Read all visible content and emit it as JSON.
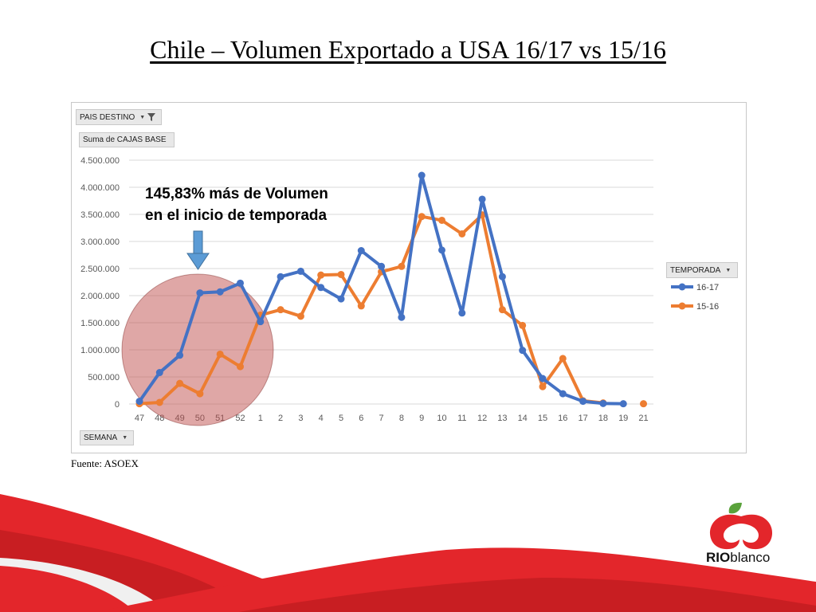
{
  "title": "Chile – Volumen Exportado a USA 16/17 vs 15/16",
  "source": "Fuente: ASOEX",
  "filters": {
    "pais_destino": "PAIS DESTINO",
    "suma": "Suma de CAJAS BASE",
    "temporada": "TEMPORADA",
    "semana": "SEMANA"
  },
  "annotation": {
    "line1": "145,83% más de Volumen",
    "line2": "en el inicio de temporada"
  },
  "brand": {
    "bold": "RIO",
    "light": "blanco"
  },
  "colors": {
    "series_16_17": "#4472c4",
    "series_15_16": "#ed7d31",
    "highlight": "#c0504d",
    "arrow": "#5b9bd5",
    "brand_red": "#e3262b",
    "brand_green": "#5aa23b"
  },
  "chart_data": {
    "type": "line",
    "title": "",
    "xlabel": "SEMANA",
    "ylabel": "Suma de CAJAS BASE",
    "ylim": [
      0,
      4500000
    ],
    "y_ticks": [
      "0",
      "500.000",
      "1.000.000",
      "1.500.000",
      "2.000.000",
      "2.500.000",
      "3.000.000",
      "3.500.000",
      "4.000.000",
      "4.500.000"
    ],
    "categories": [
      "47",
      "48",
      "49",
      "50",
      "51",
      "52",
      "1",
      "2",
      "3",
      "4",
      "5",
      "6",
      "7",
      "8",
      "9",
      "10",
      "11",
      "12",
      "13",
      "14",
      "15",
      "16",
      "17",
      "18",
      "19",
      "21"
    ],
    "series": [
      {
        "name": "16-17",
        "values": [
          50000,
          580000,
          900000,
          2050000,
          2070000,
          2230000,
          1520000,
          2350000,
          2450000,
          2150000,
          1940000,
          2830000,
          2540000,
          1600000,
          4220000,
          2840000,
          1680000,
          3780000,
          2350000,
          990000,
          470000,
          190000,
          50000,
          10000,
          5000,
          null
        ]
      },
      {
        "name": "15-16",
        "values": [
          5000,
          30000,
          380000,
          190000,
          920000,
          690000,
          1640000,
          1740000,
          1620000,
          2380000,
          2390000,
          1810000,
          2440000,
          2540000,
          3460000,
          3390000,
          3140000,
          3490000,
          1740000,
          1450000,
          320000,
          840000,
          60000,
          20000,
          null,
          5000
        ]
      }
    ],
    "legend": {
      "title": "TEMPORADA",
      "position": "right"
    },
    "grid": true
  }
}
